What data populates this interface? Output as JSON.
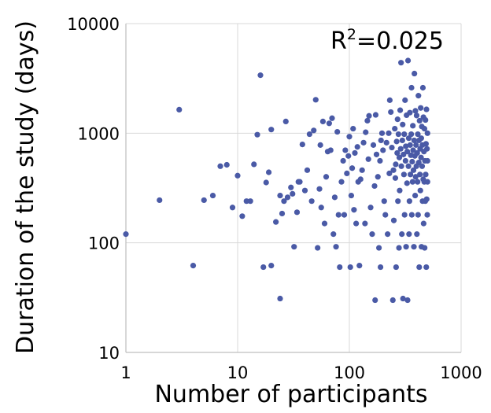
{
  "chart_data": {
    "type": "scatter",
    "xlabel": "Number of participants",
    "ylabel": "Duration of the study (days)",
    "x_scale": "log",
    "y_scale": "log",
    "xlim": [
      1,
      1000
    ],
    "ylim": [
      10,
      10000
    ],
    "x_ticks": [
      "1",
      "10",
      "100",
      "1000"
    ],
    "y_ticks": [
      "10",
      "100",
      "1000",
      "10000"
    ],
    "grid": true,
    "marker_color": "#4A5AA6",
    "annotation": {
      "base": "R",
      "sup": "2",
      "rest": "=0.025"
    },
    "points": [
      [
        1,
        120
      ],
      [
        2,
        245
      ],
      [
        3,
        1640
      ],
      [
        4,
        62
      ],
      [
        5,
        245
      ],
      [
        6,
        270
      ],
      [
        7,
        500
      ],
      [
        8,
        515
      ],
      [
        9,
        210
      ],
      [
        10,
        410
      ],
      [
        11,
        175
      ],
      [
        12,
        240
      ],
      [
        13,
        240
      ],
      [
        14,
        520
      ],
      [
        15,
        970
      ],
      [
        16,
        3380
      ],
      [
        17,
        60
      ],
      [
        18,
        355
      ],
      [
        19,
        440
      ],
      [
        20,
        62
      ],
      [
        20,
        1080
      ],
      [
        22,
        155
      ],
      [
        24,
        31
      ],
      [
        24,
        270
      ],
      [
        25,
        185
      ],
      [
        26,
        240
      ],
      [
        27,
        1280
      ],
      [
        28,
        260
      ],
      [
        30,
        320
      ],
      [
        31,
        280
      ],
      [
        32,
        92
      ],
      [
        34,
        190
      ],
      [
        35,
        360
      ],
      [
        36,
        360
      ],
      [
        38,
        790
      ],
      [
        40,
        300
      ],
      [
        42,
        460
      ],
      [
        44,
        980
      ],
      [
        46,
        240
      ],
      [
        48,
        1060
      ],
      [
        50,
        2020
      ],
      [
        52,
        90
      ],
      [
        54,
        310
      ],
      [
        55,
        780
      ],
      [
        56,
        210
      ],
      [
        58,
        1280
      ],
      [
        60,
        150
      ],
      [
        62,
        400
      ],
      [
        64,
        680
      ],
      [
        66,
        1230
      ],
      [
        68,
        700
      ],
      [
        70,
        1370
      ],
      [
        72,
        120
      ],
      [
        74,
        260
      ],
      [
        76,
        92
      ],
      [
        78,
        1030
      ],
      [
        80,
        180
      ],
      [
        82,
        60
      ],
      [
        85,
        360
      ],
      [
        88,
        560
      ],
      [
        90,
        180
      ],
      [
        92,
        700
      ],
      [
        95,
        430
      ],
      [
        98,
        620
      ],
      [
        100,
        930
      ],
      [
        102,
        60
      ],
      [
        104,
        270
      ],
      [
        106,
        480
      ],
      [
        108,
        1100
      ],
      [
        110,
        200
      ],
      [
        112,
        660
      ],
      [
        115,
        150
      ],
      [
        118,
        750
      ],
      [
        120,
        360
      ],
      [
        123,
        62
      ],
      [
        126,
        380
      ],
      [
        130,
        460
      ],
      [
        134,
        820
      ],
      [
        138,
        150
      ],
      [
        140,
        1020
      ],
      [
        145,
        1300
      ],
      [
        148,
        580
      ],
      [
        150,
        1440
      ],
      [
        155,
        210
      ],
      [
        160,
        120
      ],
      [
        164,
        780
      ],
      [
        168,
        330
      ],
      [
        170,
        30
      ],
      [
        172,
        1470
      ],
      [
        175,
        640
      ],
      [
        180,
        400
      ],
      [
        184,
        90
      ],
      [
        188,
        560
      ],
      [
        190,
        60
      ],
      [
        192,
        860
      ],
      [
        196,
        1000
      ],
      [
        200,
        700
      ],
      [
        205,
        240
      ],
      [
        210,
        180
      ],
      [
        215,
        820
      ],
      [
        220,
        120
      ],
      [
        225,
        1000
      ],
      [
        228,
        430
      ],
      [
        230,
        2000
      ],
      [
        235,
        1560
      ],
      [
        240,
        740
      ],
      [
        245,
        30
      ],
      [
        248,
        460
      ],
      [
        250,
        160
      ],
      [
        255,
        1100
      ],
      [
        258,
        390
      ],
      [
        260,
        520
      ],
      [
        262,
        60
      ],
      [
        265,
        840
      ],
      [
        268,
        660
      ],
      [
        270,
        1340
      ],
      [
        272,
        240
      ],
      [
        275,
        980
      ],
      [
        278,
        90
      ],
      [
        280,
        600
      ],
      [
        282,
        300
      ],
      [
        285,
        1620
      ],
      [
        288,
        720
      ],
      [
        290,
        4400
      ],
      [
        292,
        500
      ],
      [
        295,
        120
      ],
      [
        298,
        860
      ],
      [
        300,
        1200
      ],
      [
        302,
        31
      ],
      [
        305,
        640
      ],
      [
        308,
        420
      ],
      [
        310,
        980
      ],
      [
        312,
        180
      ],
      [
        315,
        2000
      ],
      [
        318,
        560
      ],
      [
        320,
        760
      ],
      [
        322,
        92
      ],
      [
        325,
        1460
      ],
      [
        328,
        350
      ],
      [
        330,
        680
      ],
      [
        332,
        30
      ],
      [
        335,
        4600
      ],
      [
        338,
        500
      ],
      [
        340,
        900
      ],
      [
        342,
        120
      ],
      [
        345,
        240
      ],
      [
        348,
        1540
      ],
      [
        350,
        780
      ],
      [
        352,
        420
      ],
      [
        355,
        630
      ],
      [
        358,
        980
      ],
      [
        360,
        2600
      ],
      [
        362,
        180
      ],
      [
        365,
        550
      ],
      [
        368,
        360
      ],
      [
        370,
        1170
      ],
      [
        372,
        700
      ],
      [
        375,
        460
      ],
      [
        378,
        92
      ],
      [
        380,
        860
      ],
      [
        382,
        3500
      ],
      [
        385,
        620
      ],
      [
        388,
        270
      ],
      [
        390,
        1600
      ],
      [
        392,
        400
      ],
      [
        395,
        780
      ],
      [
        398,
        500
      ],
      [
        400,
        1450
      ],
      [
        402,
        120
      ],
      [
        405,
        660
      ],
      [
        408,
        360
      ],
      [
        410,
        980
      ],
      [
        412,
        180
      ],
      [
        415,
        2200
      ],
      [
        418,
        540
      ],
      [
        420,
        860
      ],
      [
        422,
        60
      ],
      [
        425,
        1300
      ],
      [
        428,
        420
      ],
      [
        430,
        720
      ],
      [
        432,
        300
      ],
      [
        435,
        1700
      ],
      [
        438,
        600
      ],
      [
        440,
        900
      ],
      [
        442,
        92
      ],
      [
        445,
        1150
      ],
      [
        448,
        500
      ],
      [
        450,
        780
      ],
      [
        452,
        240
      ],
      [
        455,
        2600
      ],
      [
        458,
        380
      ],
      [
        460,
        1400
      ],
      [
        462,
        150
      ],
      [
        465,
        680
      ],
      [
        468,
        360
      ],
      [
        470,
        1100
      ],
      [
        472,
        90
      ],
      [
        475,
        560
      ],
      [
        478,
        240
      ],
      [
        480,
        1320
      ],
      [
        482,
        420
      ],
      [
        485,
        800
      ],
      [
        488,
        60
      ],
      [
        490,
        1650
      ],
      [
        492,
        250
      ],
      [
        495,
        720
      ],
      [
        498,
        180
      ],
      [
        500,
        1000
      ],
      [
        500,
        360
      ],
      [
        500,
        560
      ]
    ]
  }
}
